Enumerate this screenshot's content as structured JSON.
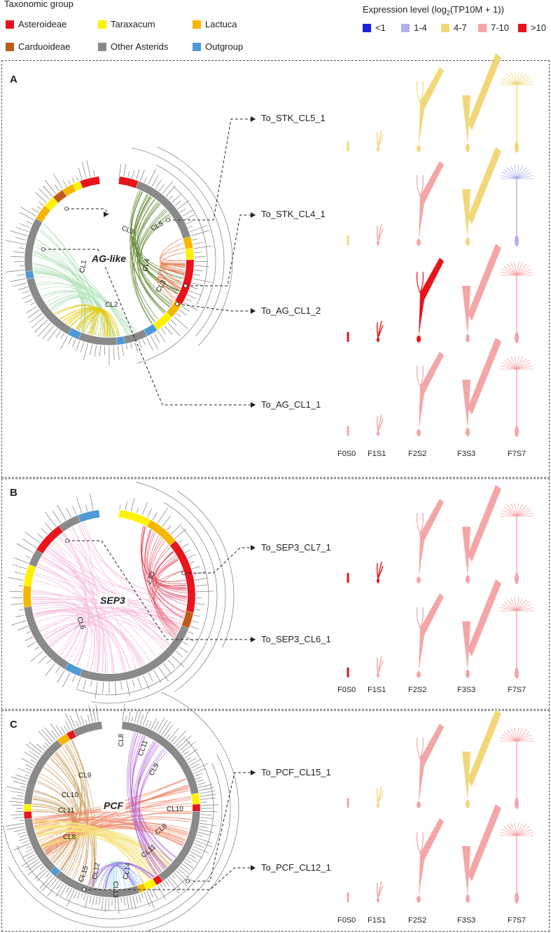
{
  "legend": {
    "taxonomic_title": "Taxonomic group",
    "taxonomic_items": [
      {
        "label": "Asteroideae",
        "color": "#e8141c"
      },
      {
        "label": "Taraxacum",
        "color": "#fff200"
      },
      {
        "label": "Lactuca",
        "color": "#f5b800"
      },
      {
        "label": "Carduoideae",
        "color": "#c05a1a"
      },
      {
        "label": "Other Asterids",
        "color": "#8a8a8a"
      },
      {
        "label": "Outgroup",
        "color": "#4f9ad6"
      }
    ],
    "expression_title": "Expression level (log",
    "expression_sub": "2",
    "expression_title_end": "(TP10M + 1))",
    "expression_items": [
      {
        "label": "<1",
        "color": "#1f1fe0"
      },
      {
        "label": "1-4",
        "color": "#b0b0f0"
      },
      {
        "label": "4-7",
        "color": "#f2d779"
      },
      {
        "label": "7-10",
        "color": "#f4a6a6"
      },
      {
        "label": ">10",
        "color": "#e8141c"
      }
    ]
  },
  "panels": [
    {
      "letter": "A",
      "center": "AG-like",
      "clusters": [
        "CL1",
        "CL2",
        "CL3",
        "CL4",
        "CL5",
        "CL3"
      ],
      "genes": [
        "To_STK_CL5_1",
        "To_STK_CL4_1",
        "To_AG_CL1_2",
        "To_AG_CL1_1"
      ],
      "stages": [
        "F0S0",
        "F1S1",
        "F2S2",
        "F3S3",
        "F7S7"
      ],
      "expression": [
        [
          "4-7",
          "4-7",
          "4-7",
          "4-7",
          "4-7"
        ],
        [
          "4-7",
          "7-10",
          "7-10",
          "4-7",
          "1-4"
        ],
        [
          ">10",
          ">10",
          ">10",
          "7-10",
          "7-10"
        ],
        [
          "7-10",
          "7-10",
          "7-10",
          "7-10",
          "7-10"
        ]
      ]
    },
    {
      "letter": "B",
      "center": "SEP3",
      "clusters": [
        "CL6",
        "CL7"
      ],
      "genes": [
        "To_SEP3_CL7_1",
        "To_SEP3_CL6_1"
      ],
      "stages": [
        "F0S0",
        "F1S1",
        "F2S2",
        "F3S3",
        "F7S7"
      ],
      "expression": [
        [
          ">10",
          ">10",
          "7-10",
          "7-10",
          "7-10"
        ],
        [
          ">10",
          "7-10",
          "7-10",
          "7-10",
          "7-10"
        ]
      ]
    },
    {
      "letter": "C",
      "center": "PCF",
      "clusters": [
        "CL8",
        "CL9",
        "CL10",
        "CL11",
        "CL12",
        "CL13",
        "CL14",
        "CL15"
      ],
      "genes": [
        "To_PCF_CL15_1",
        "To_PCF_CL12_1"
      ],
      "stages": [
        "F0S0",
        "F1S1",
        "F2S2",
        "F3S3",
        "F7S7"
      ],
      "expression": [
        [
          "7-10",
          "4-7",
          "7-10",
          "4-7",
          "7-10"
        ],
        [
          "7-10",
          "7-10",
          "7-10",
          "7-10",
          "7-10"
        ]
      ]
    }
  ]
}
